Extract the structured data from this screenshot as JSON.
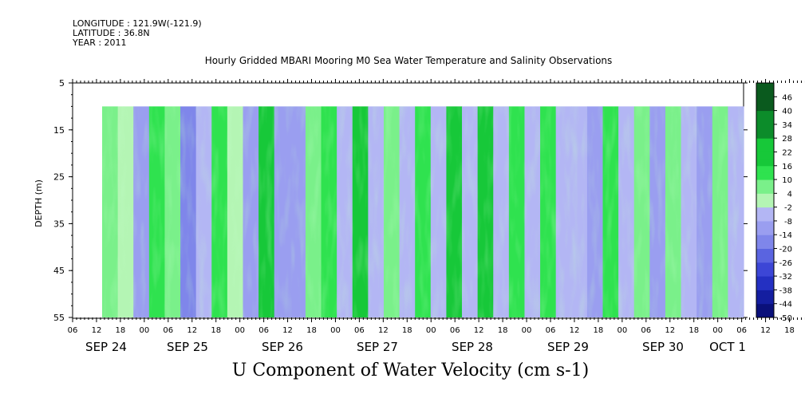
{
  "header": {
    "longitude": "LONGITUDE : 121.9W(-121.9)",
    "latitude": "LATITUDE : 36.8N",
    "year": "YEAR : 2011",
    "title": "Hourly Gridded MBARI Mooring M0 Sea Water Temperature and Salinity Observations"
  },
  "chart_data": {
    "type": "heatmap",
    "title": "U Component of Water Velocity (cm s-1)",
    "ylabel": "DEPTH (m)",
    "ylim": [
      5,
      55
    ],
    "y_inverted": true,
    "y_ticks": [
      5,
      15,
      25,
      35,
      45,
      55
    ],
    "x_hour_ticks": [
      "06",
      "12",
      "18",
      "00",
      "06",
      "12",
      "18",
      "00",
      "06",
      "12",
      "18",
      "00",
      "06",
      "12",
      "18",
      "00",
      "06",
      "12",
      "18",
      "00",
      "06",
      "12",
      "18",
      "00",
      "06",
      "12",
      "18",
      "00",
      "06",
      "12",
      "18",
      "00",
      "06"
    ],
    "x_day_labels": [
      "SEP 24",
      "SEP 25",
      "SEP 26",
      "SEP 27",
      "SEP 28",
      "SEP 29",
      "SEP 30",
      "OCT 1"
    ],
    "data_depth_range": [
      10,
      55
    ],
    "data_start": "SEP 24 14:00",
    "colorbar": {
      "ticks": [
        46,
        40,
        34,
        28,
        22,
        16,
        10,
        4,
        -2,
        -8,
        -14,
        -20,
        -26,
        -32,
        -38,
        -44,
        -50
      ],
      "range": [
        -50,
        52
      ]
    },
    "profile_by_hour_block": [
      {
        "hour": "SEP 24 14",
        "u": 8
      },
      {
        "hour": "SEP 24 18",
        "u": 2
      },
      {
        "hour": "SEP 24 22",
        "u": -10
      },
      {
        "hour": "SEP 25 02",
        "u": 12
      },
      {
        "hour": "SEP 25 06",
        "u": 4
      },
      {
        "hour": "SEP 25 10",
        "u": -16
      },
      {
        "hour": "SEP 25 14",
        "u": -6
      },
      {
        "hour": "SEP 25 18",
        "u": 14
      },
      {
        "hour": "SEP 25 22",
        "u": -2
      },
      {
        "hour": "SEP 26 02",
        "u": -12
      },
      {
        "hour": "SEP 26 06",
        "u": 16
      },
      {
        "hour": "SEP 26 10",
        "u": -10
      },
      {
        "hour": "SEP 26 14",
        "u": -14
      },
      {
        "hour": "SEP 26 18",
        "u": 6
      },
      {
        "hour": "SEP 26 22",
        "u": 14
      },
      {
        "hour": "SEP 27 02",
        "u": -8
      },
      {
        "hour": "SEP 27 06",
        "u": 18
      },
      {
        "hour": "SEP 27 10",
        "u": -6
      },
      {
        "hour": "SEP 27 14",
        "u": 8
      },
      {
        "hour": "SEP 27 18",
        "u": -4
      },
      {
        "hour": "SEP 27 22",
        "u": 10
      },
      {
        "hour": "SEP 28 02",
        "u": -8
      },
      {
        "hour": "SEP 28 06",
        "u": 16
      },
      {
        "hour": "SEP 28 10",
        "u": -4
      },
      {
        "hour": "SEP 28 14",
        "u": 18
      },
      {
        "hour": "SEP 28 18",
        "u": -8
      },
      {
        "hour": "SEP 28 22",
        "u": 14
      },
      {
        "hour": "SEP 29 02",
        "u": -6
      },
      {
        "hour": "SEP 29 06",
        "u": 14
      },
      {
        "hour": "SEP 29 10",
        "u": -8
      },
      {
        "hour": "SEP 29 14",
        "u": -4
      },
      {
        "hour": "SEP 29 18",
        "u": -10
      },
      {
        "hour": "SEP 29 22",
        "u": 10
      },
      {
        "hour": "SEP 30 02",
        "u": -6
      },
      {
        "hour": "SEP 30 06",
        "u": 8
      },
      {
        "hour": "SEP 30 10",
        "u": -10
      },
      {
        "hour": "SEP 30 14",
        "u": 6
      },
      {
        "hour": "SEP 30 18",
        "u": -4
      },
      {
        "hour": "SEP 30 22",
        "u": -10
      },
      {
        "hour": "OCT 01 02",
        "u": 6
      },
      {
        "hour": "OCT 01 06",
        "u": -8
      }
    ]
  }
}
